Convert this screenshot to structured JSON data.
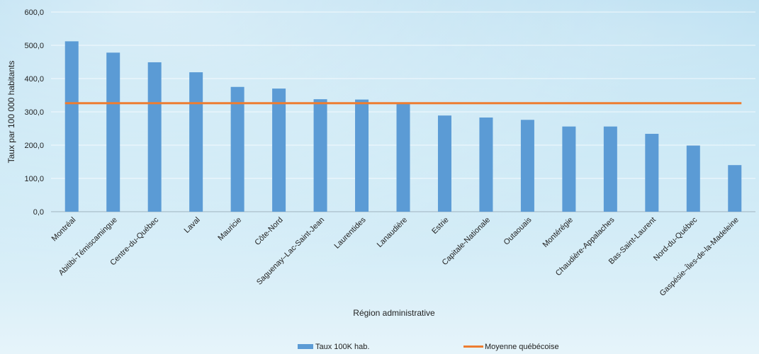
{
  "chart_data": {
    "type": "bar",
    "title": "",
    "xlabel": "Région administrative",
    "ylabel": "Taux par 100 000 habitants",
    "ylim": [
      0,
      600
    ],
    "yticks": [
      "0,0",
      "100,0",
      "200,0",
      "300,0",
      "400,0",
      "500,0",
      "600,0"
    ],
    "ytick_values": [
      0,
      100,
      200,
      300,
      400,
      500,
      600
    ],
    "grid": true,
    "legend_position": "bottom",
    "categories": [
      "Montréal",
      "Abitibi-Témiscamingue",
      "Centre-du-Québec",
      "Laval",
      "Mauricie",
      "Côte-Nord",
      "Saguenay–Lac-Saint-Jean",
      "Laurentides",
      "Lanaudière",
      "Estrie",
      "Capitale-Nationale",
      "Outaouais",
      "Montérégie",
      "Chaudière-Appalaches",
      "Bas-Saint-Laurent",
      "Nord-du-Québec",
      "Gaspésie–Îles-de-la-Madeleine"
    ],
    "series": [
      {
        "name": "Taux 100K hab.",
        "type": "bar",
        "color": "#5b9bd5",
        "values": [
          512,
          478,
          449,
          419,
          375,
          370,
          338,
          337,
          328,
          289,
          283,
          276,
          256,
          256,
          234,
          199,
          140
        ]
      },
      {
        "name": "Moyenne québécoise",
        "type": "line",
        "color": "#ed7d31",
        "values": [
          326,
          326,
          326,
          326,
          326,
          326,
          326,
          326,
          326,
          326,
          326,
          326,
          326,
          326,
          326,
          326,
          326
        ]
      }
    ]
  }
}
